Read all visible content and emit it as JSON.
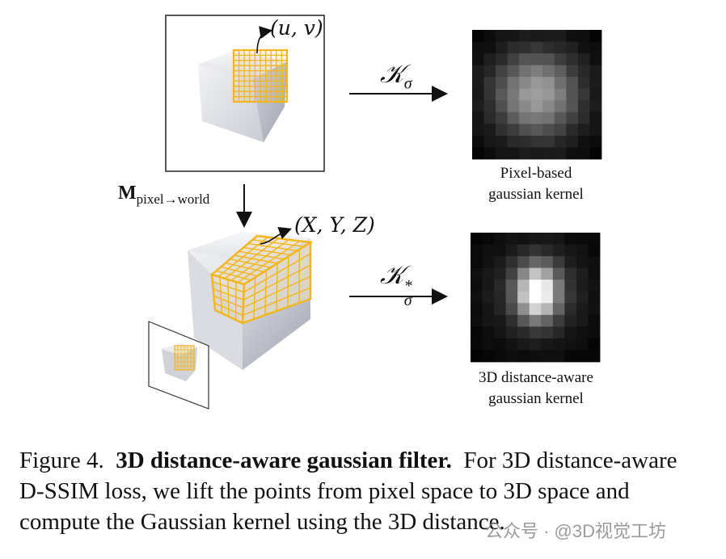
{
  "figure": {
    "top_panel": {
      "uv_label": "(u, v)",
      "arrow_label_base": "𝒦",
      "arrow_label_sub": "σ",
      "kernel_caption_line1": "Pixel-based",
      "kernel_caption_line2": "gaussian kernel"
    },
    "transform_label_main": "M",
    "transform_label_sub": "pixel→world",
    "bottom_panel": {
      "xyz_label": "(X, Y, Z)",
      "arrow_label_base": "𝒦",
      "arrow_label_sup": "*",
      "arrow_label_sub": "σ",
      "kernel_caption_line1": "3D distance-aware",
      "kernel_caption_line2": "gaussian kernel"
    },
    "colors": {
      "grid": "#f2b51e",
      "cube_light": "#e6e7ec",
      "cube_side": "#b9bcc6",
      "kernel_bg": "#000000"
    }
  },
  "caption": {
    "prefix": "Figure 4.",
    "title": "3D distance-aware gaussian filter.",
    "body": "For 3D distance-aware D-SSIM loss, we lift the points from pixel space to 3D space and compute the Gaussian kernel using the 3D distance."
  },
  "watermark": "公众号 · @3D视觉工坊"
}
